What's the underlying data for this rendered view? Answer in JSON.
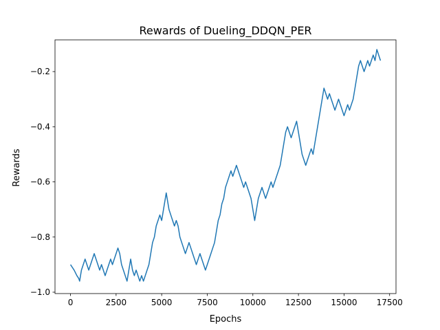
{
  "chart_data": {
    "type": "line",
    "title": "Rewards of Dueling_DDQN_PER",
    "xlabel": "Epochs",
    "ylabel": "Rewards",
    "xlim": [
      -850,
      17850
    ],
    "ylim": [
      -1.005,
      -0.085
    ],
    "xticks": [
      0,
      2500,
      5000,
      7500,
      10000,
      12500,
      15000,
      17500
    ],
    "xtick_labels": [
      "0",
      "2500",
      "5000",
      "7500",
      "10000",
      "12500",
      "15000",
      "17500"
    ],
    "yticks": [
      -1.0,
      -0.8,
      -0.6,
      -0.4,
      -0.2
    ],
    "ytick_labels": [
      "−1.0",
      "−0.8",
      "−0.6",
      "−0.4",
      "−0.2"
    ],
    "grid": false,
    "legend": "none",
    "series": [
      {
        "color": "#1f77b4",
        "points": [
          [
            0,
            -0.9
          ],
          [
            200,
            -0.92
          ],
          [
            350,
            -0.94
          ],
          [
            450,
            -0.95
          ],
          [
            500,
            -0.96
          ],
          [
            550,
            -0.94
          ],
          [
            600,
            -0.92
          ],
          [
            700,
            -0.9
          ],
          [
            800,
            -0.88
          ],
          [
            900,
            -0.9
          ],
          [
            1000,
            -0.92
          ],
          [
            1100,
            -0.9
          ],
          [
            1200,
            -0.88
          ],
          [
            1300,
            -0.86
          ],
          [
            1400,
            -0.88
          ],
          [
            1500,
            -0.9
          ],
          [
            1600,
            -0.92
          ],
          [
            1700,
            -0.9
          ],
          [
            1800,
            -0.92
          ],
          [
            1900,
            -0.94
          ],
          [
            2000,
            -0.92
          ],
          [
            2100,
            -0.9
          ],
          [
            2200,
            -0.88
          ],
          [
            2300,
            -0.9
          ],
          [
            2400,
            -0.88
          ],
          [
            2500,
            -0.86
          ],
          [
            2600,
            -0.84
          ],
          [
            2700,
            -0.86
          ],
          [
            2800,
            -0.9
          ],
          [
            2900,
            -0.92
          ],
          [
            3000,
            -0.94
          ],
          [
            3100,
            -0.96
          ],
          [
            3200,
            -0.92
          ],
          [
            3300,
            -0.88
          ],
          [
            3400,
            -0.92
          ],
          [
            3500,
            -0.94
          ],
          [
            3600,
            -0.92
          ],
          [
            3700,
            -0.94
          ],
          [
            3800,
            -0.96
          ],
          [
            3900,
            -0.94
          ],
          [
            4000,
            -0.96
          ],
          [
            4100,
            -0.94
          ],
          [
            4200,
            -0.92
          ],
          [
            4300,
            -0.9
          ],
          [
            4400,
            -0.86
          ],
          [
            4500,
            -0.82
          ],
          [
            4600,
            -0.8
          ],
          [
            4700,
            -0.76
          ],
          [
            4800,
            -0.74
          ],
          [
            4900,
            -0.72
          ],
          [
            5000,
            -0.74
          ],
          [
            5100,
            -0.7
          ],
          [
            5200,
            -0.66
          ],
          [
            5250,
            -0.64
          ],
          [
            5300,
            -0.66
          ],
          [
            5400,
            -0.7
          ],
          [
            5500,
            -0.72
          ],
          [
            5600,
            -0.74
          ],
          [
            5700,
            -0.76
          ],
          [
            5800,
            -0.74
          ],
          [
            5900,
            -0.76
          ],
          [
            6000,
            -0.8
          ],
          [
            6100,
            -0.82
          ],
          [
            6200,
            -0.84
          ],
          [
            6300,
            -0.86
          ],
          [
            6400,
            -0.84
          ],
          [
            6500,
            -0.82
          ],
          [
            6600,
            -0.84
          ],
          [
            6700,
            -0.86
          ],
          [
            6800,
            -0.88
          ],
          [
            6900,
            -0.9
          ],
          [
            7000,
            -0.88
          ],
          [
            7100,
            -0.86
          ],
          [
            7200,
            -0.88
          ],
          [
            7300,
            -0.9
          ],
          [
            7400,
            -0.92
          ],
          [
            7500,
            -0.9
          ],
          [
            7600,
            -0.88
          ],
          [
            7700,
            -0.86
          ],
          [
            7800,
            -0.84
          ],
          [
            7900,
            -0.82
          ],
          [
            8000,
            -0.78
          ],
          [
            8100,
            -0.74
          ],
          [
            8200,
            -0.72
          ],
          [
            8300,
            -0.68
          ],
          [
            8400,
            -0.66
          ],
          [
            8500,
            -0.62
          ],
          [
            8600,
            -0.6
          ],
          [
            8700,
            -0.58
          ],
          [
            8800,
            -0.56
          ],
          [
            8900,
            -0.58
          ],
          [
            9000,
            -0.56
          ],
          [
            9100,
            -0.54
          ],
          [
            9200,
            -0.56
          ],
          [
            9300,
            -0.58
          ],
          [
            9400,
            -0.6
          ],
          [
            9500,
            -0.62
          ],
          [
            9600,
            -0.6
          ],
          [
            9700,
            -0.62
          ],
          [
            9800,
            -0.64
          ],
          [
            9900,
            -0.66
          ],
          [
            10000,
            -0.7
          ],
          [
            10100,
            -0.74
          ],
          [
            10200,
            -0.7
          ],
          [
            10300,
            -0.66
          ],
          [
            10400,
            -0.64
          ],
          [
            10500,
            -0.62
          ],
          [
            10600,
            -0.64
          ],
          [
            10700,
            -0.66
          ],
          [
            10800,
            -0.64
          ],
          [
            10900,
            -0.62
          ],
          [
            11000,
            -0.6
          ],
          [
            11100,
            -0.62
          ],
          [
            11200,
            -0.6
          ],
          [
            11300,
            -0.58
          ],
          [
            11400,
            -0.56
          ],
          [
            11500,
            -0.54
          ],
          [
            11600,
            -0.5
          ],
          [
            11700,
            -0.46
          ],
          [
            11800,
            -0.42
          ],
          [
            11900,
            -0.4
          ],
          [
            12000,
            -0.42
          ],
          [
            12100,
            -0.44
          ],
          [
            12200,
            -0.42
          ],
          [
            12300,
            -0.4
          ],
          [
            12400,
            -0.38
          ],
          [
            12500,
            -0.42
          ],
          [
            12600,
            -0.46
          ],
          [
            12700,
            -0.5
          ],
          [
            12800,
            -0.52
          ],
          [
            12900,
            -0.54
          ],
          [
            13000,
            -0.52
          ],
          [
            13100,
            -0.5
          ],
          [
            13200,
            -0.48
          ],
          [
            13300,
            -0.5
          ],
          [
            13400,
            -0.46
          ],
          [
            13500,
            -0.42
          ],
          [
            13600,
            -0.38
          ],
          [
            13700,
            -0.34
          ],
          [
            13800,
            -0.3
          ],
          [
            13900,
            -0.26
          ],
          [
            14000,
            -0.28
          ],
          [
            14100,
            -0.3
          ],
          [
            14200,
            -0.28
          ],
          [
            14300,
            -0.3
          ],
          [
            14400,
            -0.32
          ],
          [
            14500,
            -0.34
          ],
          [
            14600,
            -0.32
          ],
          [
            14700,
            -0.3
          ],
          [
            14800,
            -0.32
          ],
          [
            14900,
            -0.34
          ],
          [
            15000,
            -0.36
          ],
          [
            15100,
            -0.34
          ],
          [
            15200,
            -0.32
          ],
          [
            15300,
            -0.34
          ],
          [
            15400,
            -0.32
          ],
          [
            15500,
            -0.3
          ],
          [
            15600,
            -0.26
          ],
          [
            15700,
            -0.22
          ],
          [
            15800,
            -0.18
          ],
          [
            15900,
            -0.16
          ],
          [
            16000,
            -0.18
          ],
          [
            16100,
            -0.2
          ],
          [
            16200,
            -0.18
          ],
          [
            16300,
            -0.16
          ],
          [
            16400,
            -0.18
          ],
          [
            16500,
            -0.16
          ],
          [
            16600,
            -0.14
          ],
          [
            16700,
            -0.16
          ],
          [
            16800,
            -0.12
          ],
          [
            16900,
            -0.14
          ],
          [
            17000,
            -0.16
          ]
        ]
      }
    ]
  }
}
